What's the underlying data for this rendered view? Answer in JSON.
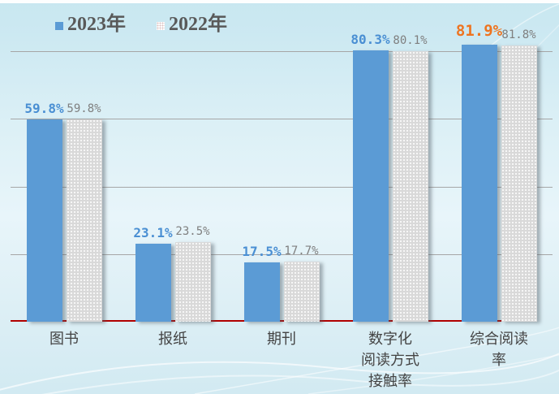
{
  "chart_data": {
    "type": "bar",
    "title": "",
    "categories": [
      "图书",
      "报纸",
      "期刊",
      "数字化\n阅读方式\n接触率",
      "综合阅读率"
    ],
    "series": [
      {
        "name": "2023年",
        "values": [
          59.8,
          23.1,
          17.5,
          80.3,
          81.9
        ]
      },
      {
        "name": "2022年",
        "values": [
          59.8,
          23.5,
          17.7,
          80.1,
          81.8
        ]
      }
    ],
    "value_label_format": "percent_one_decimal",
    "highlight": {
      "series": 0,
      "index": 4,
      "color": "#ee7420"
    },
    "ylim": [
      0,
      85
    ],
    "gridlines_percent": [
      20,
      40,
      60,
      80
    ],
    "grid": true,
    "legend_position": "top-left",
    "xlabel": "",
    "ylabel": ""
  },
  "colors": {
    "bar_2023": "#5b9bd5",
    "bar_2022_base": "#d9d9d9",
    "bar_2022_dots": "#ffffff",
    "label_2023": "#4a8fd3",
    "label_2022": "#7f7f7f",
    "label_highlight": "#ee7420",
    "axis_baseline": "#b00000",
    "gridline": "#a6a6a6",
    "text": "#595959",
    "background_top": "#c8e7f0",
    "background_mid": "#e8f5fa"
  }
}
